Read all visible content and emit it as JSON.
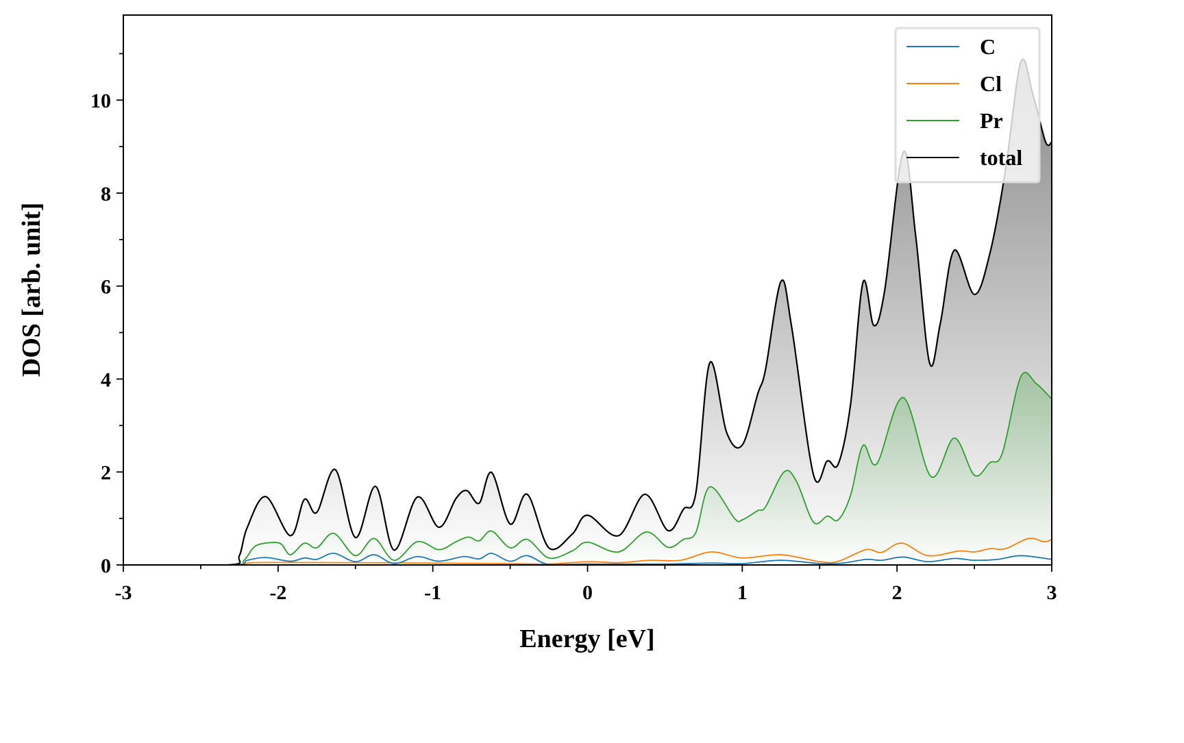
{
  "chart_data": {
    "type": "line",
    "title": "",
    "xlabel": "Energy [eV]",
    "ylabel": "DOS [arb. unit]",
    "xlim": [
      -3,
      3
    ],
    "ylim": [
      0,
      11.83
    ],
    "xticks": [
      "-3",
      "-2",
      "-1",
      "0",
      "1",
      "2",
      "3"
    ],
    "xtick_values": [
      -3,
      -2,
      -1,
      0,
      1,
      2,
      3
    ],
    "yticks": [
      "0",
      "2",
      "4",
      "6",
      "8",
      "10"
    ],
    "ytick_values": [
      0,
      2,
      4,
      6,
      8,
      10
    ],
    "legend_position": "top-right",
    "grid": false,
    "series": [
      {
        "name": "C",
        "color": "#1f77b4",
        "fill": false,
        "points": [
          [
            -3,
            0
          ],
          [
            -2.3,
            0
          ],
          [
            -2.2,
            0.1
          ],
          [
            -2.08,
            0.16
          ],
          [
            -1.92,
            0.08
          ],
          [
            -1.83,
            0.15
          ],
          [
            -1.75,
            0.12
          ],
          [
            -1.64,
            0.25
          ],
          [
            -1.5,
            0.07
          ],
          [
            -1.38,
            0.22
          ],
          [
            -1.25,
            0.03
          ],
          [
            -1.1,
            0.18
          ],
          [
            -0.96,
            0.08
          ],
          [
            -0.8,
            0.18
          ],
          [
            -0.7,
            0.13
          ],
          [
            -0.62,
            0.25
          ],
          [
            -0.5,
            0.08
          ],
          [
            -0.39,
            0.2
          ],
          [
            -0.25,
            0.01
          ],
          [
            0,
            0.02
          ],
          [
            0.5,
            0.02
          ],
          [
            0.8,
            0.04
          ],
          [
            1.0,
            0.03
          ],
          [
            1.25,
            0.1
          ],
          [
            1.5,
            0.03
          ],
          [
            1.65,
            0.04
          ],
          [
            1.8,
            0.12
          ],
          [
            1.9,
            0.1
          ],
          [
            2.04,
            0.17
          ],
          [
            2.2,
            0.07
          ],
          [
            2.37,
            0.14
          ],
          [
            2.5,
            0.1
          ],
          [
            2.65,
            0.12
          ],
          [
            2.8,
            0.2
          ],
          [
            3,
            0.12
          ]
        ]
      },
      {
        "name": "Cl",
        "color": "#ff7f0e",
        "fill": false,
        "points": [
          [
            -3,
            0
          ],
          [
            -2.3,
            0
          ],
          [
            -2.15,
            0.05
          ],
          [
            -1.6,
            0.05
          ],
          [
            -1.0,
            0.04
          ],
          [
            -0.5,
            0.03
          ],
          [
            -0.25,
            0.02
          ],
          [
            0,
            0.07
          ],
          [
            0.2,
            0.05
          ],
          [
            0.4,
            0.1
          ],
          [
            0.6,
            0.1
          ],
          [
            0.8,
            0.28
          ],
          [
            1.0,
            0.15
          ],
          [
            1.25,
            0.22
          ],
          [
            1.5,
            0.07
          ],
          [
            1.62,
            0.08
          ],
          [
            1.8,
            0.33
          ],
          [
            1.9,
            0.27
          ],
          [
            2.03,
            0.47
          ],
          [
            2.2,
            0.2
          ],
          [
            2.4,
            0.3
          ],
          [
            2.5,
            0.28
          ],
          [
            2.6,
            0.35
          ],
          [
            2.7,
            0.35
          ],
          [
            2.85,
            0.57
          ],
          [
            2.95,
            0.5
          ],
          [
            3,
            0.55
          ]
        ]
      },
      {
        "name": "Pr",
        "color": "#2ca02c",
        "fill": true,
        "points": [
          [
            -3,
            0
          ],
          [
            -2.3,
            0
          ],
          [
            -2.22,
            0.1
          ],
          [
            -2.15,
            0.4
          ],
          [
            -2.05,
            0.48
          ],
          [
            -1.98,
            0.45
          ],
          [
            -1.92,
            0.22
          ],
          [
            -1.83,
            0.47
          ],
          [
            -1.75,
            0.37
          ],
          [
            -1.64,
            0.68
          ],
          [
            -1.5,
            0.2
          ],
          [
            -1.38,
            0.57
          ],
          [
            -1.25,
            0.1
          ],
          [
            -1.1,
            0.5
          ],
          [
            -0.96,
            0.33
          ],
          [
            -0.85,
            0.5
          ],
          [
            -0.77,
            0.6
          ],
          [
            -0.7,
            0.52
          ],
          [
            -0.62,
            0.73
          ],
          [
            -0.5,
            0.37
          ],
          [
            -0.39,
            0.55
          ],
          [
            -0.25,
            0.15
          ],
          [
            -0.1,
            0.3
          ],
          [
            0,
            0.49
          ],
          [
            0.2,
            0.28
          ],
          [
            0.38,
            0.71
          ],
          [
            0.52,
            0.38
          ],
          [
            0.62,
            0.55
          ],
          [
            0.7,
            0.7
          ],
          [
            0.79,
            1.68
          ],
          [
            0.95,
            1.0
          ],
          [
            1.0,
            0.97
          ],
          [
            1.1,
            1.17
          ],
          [
            1.15,
            1.25
          ],
          [
            1.27,
            2.0
          ],
          [
            1.35,
            1.8
          ],
          [
            1.46,
            0.92
          ],
          [
            1.55,
            1.05
          ],
          [
            1.62,
            0.97
          ],
          [
            1.7,
            1.5
          ],
          [
            1.78,
            2.57
          ],
          [
            1.87,
            2.18
          ],
          [
            2.04,
            3.6
          ],
          [
            2.22,
            1.9
          ],
          [
            2.37,
            2.73
          ],
          [
            2.5,
            1.93
          ],
          [
            2.6,
            2.2
          ],
          [
            2.68,
            2.4
          ],
          [
            2.8,
            4.05
          ],
          [
            2.9,
            3.9
          ],
          [
            3,
            3.57
          ]
        ]
      },
      {
        "name": "total",
        "color": "#000000",
        "fill": true,
        "points": [
          [
            -3,
            0
          ],
          [
            -2.32,
            0
          ],
          [
            -2.25,
            0.2
          ],
          [
            -2.2,
            0.8
          ],
          [
            -2.08,
            1.47
          ],
          [
            -1.92,
            0.63
          ],
          [
            -1.83,
            1.41
          ],
          [
            -1.75,
            1.13
          ],
          [
            -1.63,
            2.05
          ],
          [
            -1.5,
            0.59
          ],
          [
            -1.37,
            1.69
          ],
          [
            -1.25,
            0.32
          ],
          [
            -1.1,
            1.46
          ],
          [
            -0.96,
            0.81
          ],
          [
            -0.85,
            1.43
          ],
          [
            -0.78,
            1.6
          ],
          [
            -0.7,
            1.33
          ],
          [
            -0.62,
            1.99
          ],
          [
            -0.5,
            0.88
          ],
          [
            -0.39,
            1.52
          ],
          [
            -0.25,
            0.37
          ],
          [
            -0.1,
            0.66
          ],
          [
            0,
            1.07
          ],
          [
            0.2,
            0.63
          ],
          [
            0.37,
            1.52
          ],
          [
            0.52,
            0.74
          ],
          [
            0.62,
            1.2
          ],
          [
            0.7,
            1.55
          ],
          [
            0.79,
            4.35
          ],
          [
            0.9,
            2.84
          ],
          [
            1.0,
            2.58
          ],
          [
            1.1,
            3.68
          ],
          [
            1.15,
            4.2
          ],
          [
            1.25,
            6.1
          ],
          [
            1.32,
            5.1
          ],
          [
            1.46,
            1.94
          ],
          [
            1.55,
            2.24
          ],
          [
            1.62,
            2.17
          ],
          [
            1.7,
            3.46
          ],
          [
            1.78,
            6.08
          ],
          [
            1.85,
            5.15
          ],
          [
            1.92,
            5.9
          ],
          [
            2.04,
            8.88
          ],
          [
            2.12,
            7.1
          ],
          [
            2.21,
            4.35
          ],
          [
            2.28,
            5.2
          ],
          [
            2.37,
            6.77
          ],
          [
            2.5,
            5.82
          ],
          [
            2.6,
            6.7
          ],
          [
            2.7,
            8.47
          ],
          [
            2.8,
            10.82
          ],
          [
            2.88,
            10.1
          ],
          [
            2.96,
            9.1
          ],
          [
            3,
            9.1
          ]
        ]
      }
    ]
  }
}
